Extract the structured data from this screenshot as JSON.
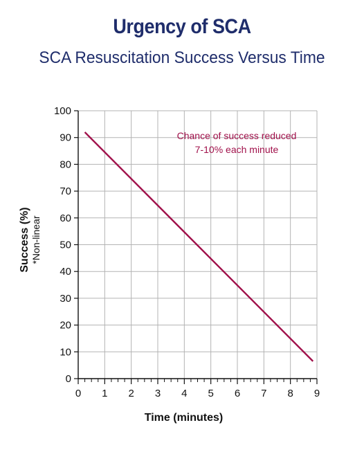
{
  "header": {
    "title": "Urgency of SCA",
    "subtitle": "SCA Resuscitation Success Versus Time"
  },
  "chart_data": {
    "type": "line",
    "title": "Urgency of SCA",
    "subtitle": "SCA Resuscitation Success Versus Time",
    "xlabel": "Time (minutes)",
    "ylabel": "Success (%)",
    "ylabel_note": "*Non-linear",
    "xlim": [
      0,
      9
    ],
    "ylim": [
      0,
      100
    ],
    "xticks": [
      0,
      1,
      2,
      3,
      4,
      5,
      6,
      7,
      8,
      9
    ],
    "yticks": [
      0,
      10,
      20,
      30,
      40,
      50,
      60,
      70,
      80,
      90,
      100
    ],
    "x_minor_ticks_per_unit": 4,
    "grid": true,
    "series": [
      {
        "color": "#a0104a",
        "points": [
          {
            "x": 0.25,
            "y": 92
          },
          {
            "x": 8.85,
            "y": 6.5
          }
        ]
      }
    ],
    "annotation": {
      "lines": [
        "Chance of success reduced",
        "7-10% each minute"
      ],
      "color": "#a0104a"
    },
    "colors": {
      "title": "#1f2d6b",
      "grid": "#b3b3b3",
      "axis": "#111111"
    }
  }
}
